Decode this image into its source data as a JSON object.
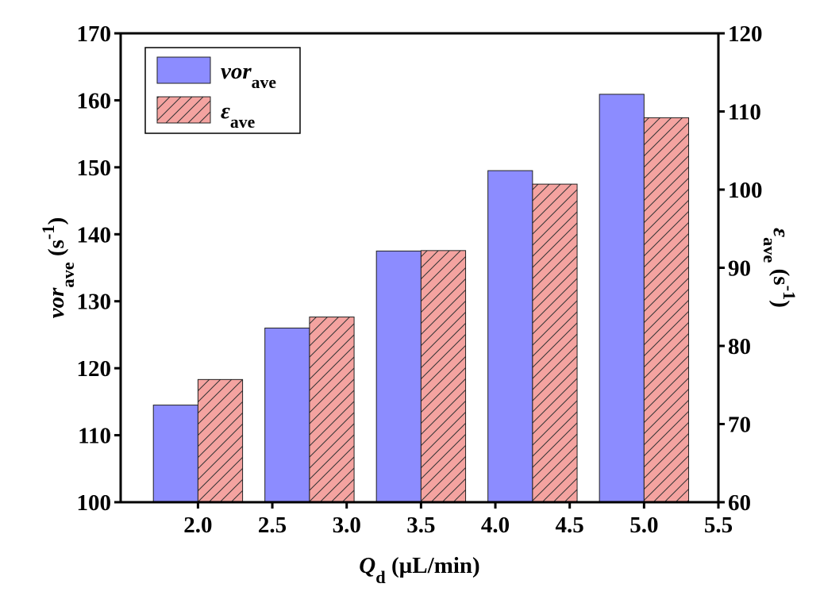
{
  "chart_data": {
    "type": "bar",
    "x": [
      2.0,
      2.75,
      3.5,
      4.25,
      5.0
    ],
    "xlim": [
      1.48,
      5.5
    ],
    "xticks": [
      {
        "value": 2,
        "label": "2.0"
      },
      {
        "value": 2.5,
        "label": "2.5"
      },
      {
        "value": 3,
        "label": "3.0"
      },
      {
        "value": 3.5,
        "label": "3.5"
      },
      {
        "value": 4,
        "label": "4.0"
      },
      {
        "value": 4.5,
        "label": "4.5"
      },
      {
        "value": 5,
        "label": "5.0"
      },
      {
        "value": 5.5,
        "label": "5.5"
      }
    ],
    "ylim": [
      100,
      170
    ],
    "yticks": [
      100,
      110,
      120,
      130,
      140,
      150,
      160,
      170
    ],
    "y2lim": [
      60,
      120
    ],
    "y2ticks": [
      60,
      70,
      80,
      90,
      100,
      110,
      120
    ],
    "xlabel": [
      {
        "text": "Q",
        "style": "italic"
      },
      {
        "text": "d",
        "style": "sub"
      },
      {
        "text": " (µL/min)"
      }
    ],
    "ylabel": [
      {
        "text": "vor",
        "style": "italic"
      },
      {
        "text": "ave",
        "style": "sub"
      },
      {
        "text": " (s"
      },
      {
        "text": "-1",
        "style": "sup"
      },
      {
        "text": ")"
      }
    ],
    "y2label": [
      {
        "text": "ε",
        "style": "italic"
      },
      {
        "text": "ave",
        "style": "sub"
      },
      {
        "text": " (s"
      },
      {
        "text": "-1",
        "style": "sup"
      },
      {
        "text": ")"
      }
    ],
    "legend": "upper left",
    "series": [
      {
        "name": [
          {
            "text": "vor",
            "style": "italic"
          },
          {
            "text": "ave",
            "style": "sub"
          }
        ],
        "color": "#8c8cff",
        "values": [
          114.5,
          126.0,
          137.5,
          149.5,
          160.9
        ]
      },
      {
        "name": [
          {
            "text": "ε",
            "style": "italic"
          },
          {
            "text": "ave",
            "style": "sub"
          }
        ],
        "color": "#f4a3a0",
        "hatch": true,
        "axis": "y2",
        "values": [
          75.7,
          83.7,
          92.2,
          100.7,
          109.2
        ]
      }
    ]
  }
}
